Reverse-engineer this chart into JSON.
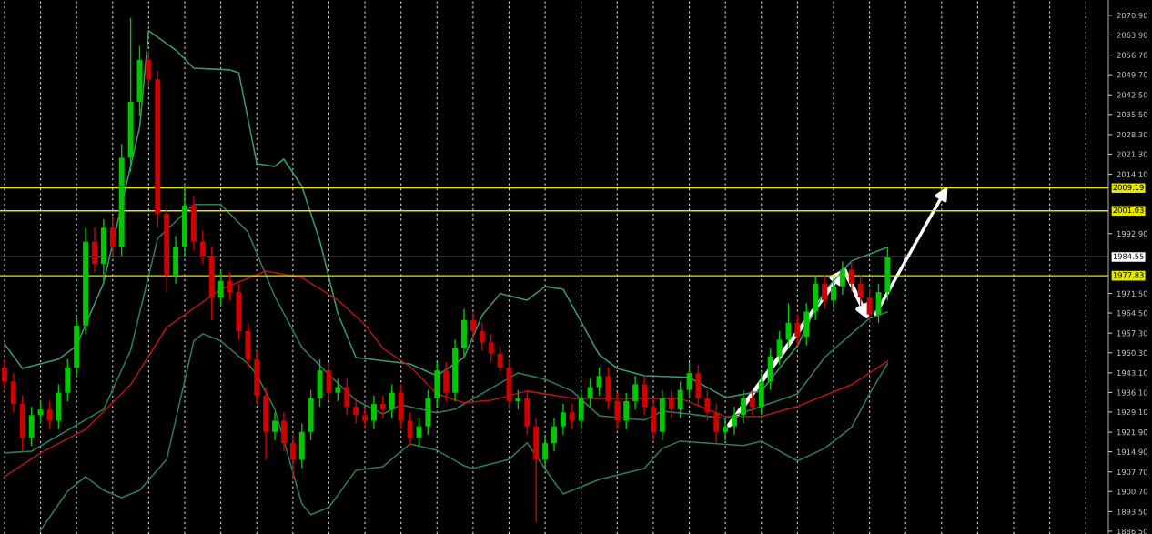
{
  "chart_data": {
    "type": "candlestick",
    "categories": [
      null,
      null,
      null,
      null,
      null,
      null,
      null,
      null,
      null,
      null,
      null,
      null,
      null,
      null,
      null,
      null,
      null,
      null,
      null,
      null,
      null,
      null,
      null,
      null,
      null,
      null,
      null,
      null,
      null,
      null,
      null,
      null,
      null,
      null,
      null,
      null,
      null,
      null,
      null,
      null,
      null,
      null,
      null,
      null,
      null,
      null,
      null,
      null,
      null,
      null,
      null,
      null,
      null,
      null,
      null,
      null,
      null,
      null,
      null,
      null,
      null,
      null,
      null,
      null,
      null,
      null,
      null,
      null,
      null,
      null,
      null,
      null,
      null,
      null,
      null,
      null,
      null,
      null,
      null,
      null,
      null,
      null,
      null,
      null,
      null,
      null,
      null,
      null,
      null,
      null,
      null,
      null,
      null,
      null,
      null,
      null,
      null,
      null,
      null,
      null,
      null,
      null,
      null,
      null,
      null,
      null,
      null,
      null,
      null,
      null,
      null,
      null,
      null,
      null,
      null,
      null,
      null,
      null,
      null,
      null,
      null,
      null,
      null
    ],
    "ohlc": [
      [
        1945,
        1948,
        1937,
        1940
      ],
      [
        1940,
        1943,
        1929,
        1932
      ],
      [
        1932,
        1935,
        1915,
        1920
      ],
      [
        1920,
        1931,
        1917,
        1928
      ],
      [
        1928,
        1933,
        1925,
        1930
      ],
      [
        1930,
        1933,
        1923,
        1926
      ],
      [
        1926,
        1939,
        1923,
        1936
      ],
      [
        1936,
        1948,
        1933,
        1945
      ],
      [
        1945,
        1963,
        1942,
        1960
      ],
      [
        1960,
        1995,
        1957,
        1990
      ],
      [
        1990,
        1995,
        1979,
        1982
      ],
      [
        1982,
        1998,
        1976,
        1995
      ],
      [
        1995,
        1999,
        1985,
        1988
      ],
      [
        1988,
        2025,
        1985,
        2020
      ],
      [
        2020,
        2070,
        2015,
        2040
      ],
      [
        2040,
        2060,
        2035,
        2055
      ],
      [
        2055,
        2058,
        2045,
        2048
      ],
      [
        2048,
        2051,
        1995,
        2000
      ],
      [
        2000,
        2003,
        1972,
        1978
      ],
      [
        1978,
        1992,
        1975,
        1988
      ],
      [
        1988,
        2010,
        1985,
        2003
      ],
      [
        2003,
        2006,
        1987,
        1990
      ],
      [
        1990,
        1994,
        1982,
        1985
      ],
      [
        1985,
        1988,
        1962,
        1970
      ],
      [
        1970,
        1980,
        1967,
        1976
      ],
      [
        1976,
        1979,
        1969,
        1972
      ],
      [
        1972,
        1975,
        1955,
        1958
      ],
      [
        1958,
        1961,
        1945,
        1948
      ],
      [
        1948,
        1951,
        1932,
        1935
      ],
      [
        1935,
        1938,
        1912,
        1922
      ],
      [
        1922,
        1929,
        1919,
        1926
      ],
      [
        1926,
        1929,
        1915,
        1918
      ],
      [
        1918,
        1921,
        1905,
        1912
      ],
      [
        1912,
        1925,
        1909,
        1922
      ],
      [
        1922,
        1937,
        1919,
        1934
      ],
      [
        1934,
        1948,
        1931,
        1944
      ],
      [
        1944,
        1947,
        1933,
        1936
      ],
      [
        1936,
        1941,
        1933,
        1938
      ],
      [
        1938,
        1941,
        1928,
        1931
      ],
      [
        1931,
        1934,
        1925,
        1928
      ],
      [
        1928,
        1931,
        1923,
        1926
      ],
      [
        1926,
        1935,
        1923,
        1932
      ],
      [
        1932,
        1935,
        1927,
        1930
      ],
      [
        1930,
        1939,
        1927,
        1936
      ],
      [
        1936,
        1939,
        1923,
        1926
      ],
      [
        1926,
        1929,
        1917,
        1920
      ],
      [
        1920,
        1927,
        1917,
        1924
      ],
      [
        1924,
        1937,
        1921,
        1934
      ],
      [
        1934,
        1947,
        1931,
        1944
      ],
      [
        1944,
        1947,
        1933,
        1936
      ],
      [
        1936,
        1955,
        1933,
        1952
      ],
      [
        1952,
        1966,
        1949,
        1962
      ],
      [
        1962,
        1965,
        1955,
        1958
      ],
      [
        1958,
        1961,
        1951,
        1954
      ],
      [
        1954,
        1957,
        1947,
        1950
      ],
      [
        1950,
        1953,
        1942,
        1945
      ],
      [
        1945,
        1948,
        1930,
        1933
      ],
      [
        1933,
        1937,
        1930,
        1934
      ],
      [
        1934,
        1937,
        1921,
        1924
      ],
      [
        1924,
        1927,
        1890,
        1912
      ],
      [
        1912,
        1921,
        1909,
        1918
      ],
      [
        1918,
        1927,
        1915,
        1924
      ],
      [
        1924,
        1932,
        1921,
        1929
      ],
      [
        1929,
        1932,
        1923,
        1926
      ],
      [
        1926,
        1937,
        1923,
        1934
      ],
      [
        1934,
        1941,
        1931,
        1938
      ],
      [
        1938,
        1945,
        1935,
        1942
      ],
      [
        1942,
        1945,
        1930,
        1933
      ],
      [
        1933,
        1936,
        1923,
        1926
      ],
      [
        1926,
        1936,
        1923,
        1933
      ],
      [
        1933,
        1942,
        1930,
        1939
      ],
      [
        1939,
        1942,
        1928,
        1931
      ],
      [
        1931,
        1934,
        1919,
        1922
      ],
      [
        1922,
        1937,
        1919,
        1934
      ],
      [
        1934,
        1937,
        1927,
        1930
      ],
      [
        1930,
        1940,
        1927,
        1937
      ],
      [
        1937,
        1947,
        1934,
        1943
      ],
      [
        1943,
        1946,
        1931,
        1934
      ],
      [
        1934,
        1937,
        1926,
        1929
      ],
      [
        1929,
        1932,
        1918,
        1922
      ],
      [
        1922,
        1927,
        1919,
        1924
      ],
      [
        1924,
        1931,
        1921,
        1928
      ],
      [
        1928,
        1937,
        1925,
        1934
      ],
      [
        1934,
        1937,
        1928,
        1931
      ],
      [
        1931,
        1943,
        1928,
        1940
      ],
      [
        1940,
        1952,
        1937,
        1949
      ],
      [
        1949,
        1958,
        1946,
        1955
      ],
      [
        1955,
        1968,
        1952,
        1961
      ],
      [
        1961,
        1964,
        1953,
        1956
      ],
      [
        1956,
        1968,
        1953,
        1965
      ],
      [
        1965,
        1978,
        1962,
        1975
      ],
      [
        1975,
        1978,
        1966,
        1969
      ],
      [
        1969,
        1977,
        1966,
        1974
      ],
      [
        1974,
        1983,
        1971,
        1980
      ],
      [
        1980,
        1983,
        1972,
        1975
      ],
      [
        1975,
        1978,
        1967,
        1970
      ],
      [
        1970,
        1973,
        1961,
        1964
      ],
      [
        1964,
        1975,
        1961,
        1972
      ],
      [
        1972,
        1988,
        1969,
        1984.5
      ],
      null,
      null,
      null,
      null,
      null,
      null,
      null,
      null,
      null,
      null,
      null,
      null,
      null,
      null,
      null,
      null,
      null,
      null,
      null,
      null,
      null,
      null,
      null,
      null
    ],
    "colors": [
      "#d00000",
      "#d00000",
      "#d00000",
      "#00c800",
      "#00c800",
      "#d00000",
      "#00c800",
      "#00c800",
      "#00c800",
      "#00c800",
      "#d00000",
      "#00c800",
      "#d00000",
      "#00c800",
      "#00c800",
      "#00c800",
      "#d00000",
      "#d00000",
      "#d00000",
      "#00c800",
      "#00c800",
      "#d00000",
      "#d00000",
      "#d00000",
      "#00c800",
      "#d00000",
      "#d00000",
      "#d00000",
      "#d00000",
      "#d00000",
      "#00c800",
      "#d00000",
      "#d00000",
      "#00c800",
      "#00c800",
      "#00c800",
      "#d00000",
      "#00c800",
      "#d00000",
      "#d00000",
      "#d00000",
      "#00c800",
      "#d00000",
      "#00c800",
      "#d00000",
      "#d00000",
      "#00c800",
      "#00c800",
      "#00c800",
      "#d00000",
      "#00c800",
      "#00c800",
      "#d00000",
      "#d00000",
      "#d00000",
      "#d00000",
      "#d00000",
      "#00c800",
      "#d00000",
      "#d00000",
      "#00c800",
      "#00c800",
      "#00c800",
      "#d00000",
      "#00c800",
      "#00c800",
      "#00c800",
      "#d00000",
      "#d00000",
      "#00c800",
      "#00c800",
      "#d00000",
      "#d00000",
      "#00c800",
      "#d00000",
      "#00c800",
      "#00c800",
      "#d00000",
      "#d00000",
      "#d00000",
      "#00c800",
      "#00c800",
      "#00c800",
      "#d00000",
      "#00c800",
      "#00c800",
      "#00c800",
      "#00c800",
      "#d00000",
      "#00c800",
      "#00c800",
      "#d00000",
      "#00c800",
      "#00c800",
      "#d00000",
      "#d00000",
      "#d00000",
      "#00c800",
      "#00c800",
      null,
      null,
      null,
      null,
      null,
      null,
      null,
      null,
      null,
      null,
      null,
      null,
      null,
      null,
      null,
      null,
      null,
      null,
      null,
      null,
      null,
      null,
      null,
      null
    ],
    "series": [
      {
        "type": "line",
        "color": "#3a9a6a",
        "values": [
          1953.5,
          null,
          1944.7,
          null,
          null,
          null,
          1948.0,
          null,
          1952.8,
          null,
          null,
          1975.3,
          null,
          null,
          null,
          2030.9,
          2065.4,
          null,
          null,
          2058.5,
          null,
          2052.0,
          null,
          null,
          null,
          2051.4,
          2050.4,
          null,
          2017.9,
          null,
          2016.9,
          2019.5,
          null,
          2009.8,
          null,
          1990.2,
          null,
          1964.2,
          null,
          1948.6,
          null,
          null,
          null,
          null,
          null,
          1946.3,
          null,
          null,
          1942.1,
          null,
          null,
          1948.6,
          null,
          1963.6,
          null,
          1971.4,
          null,
          null,
          1969.1,
          null,
          1974.0,
          null,
          1973.0,
          null,
          null,
          null,
          1949.6,
          null,
          1944.7,
          null,
          null,
          1942.1,
          null,
          null,
          null,
          null,
          1941.5,
          null,
          null,
          null,
          1934.3,
          null,
          null,
          null,
          1936.6,
          null,
          null,
          null,
          1952.8,
          null,
          null,
          1972.4,
          null,
          null,
          1983.1,
          null,
          null,
          null,
          1988.0,
          null,
          null,
          null,
          null,
          null,
          null,
          null,
          null,
          null,
          null,
          null,
          null,
          null,
          null,
          null,
          null,
          null,
          null,
          null,
          null,
          null,
          null,
          null,
          null
        ]
      },
      {
        "type": "line",
        "color": "#2f7d55",
        "values": [
          1914.5,
          null,
          null,
          1915.1,
          null,
          null,
          null,
          null,
          null,
          null,
          null,
          1930.1,
          null,
          null,
          1951.2,
          null,
          null,
          1991.2,
          null,
          null,
          null,
          2003.3,
          null,
          null,
          2003.3,
          null,
          null,
          1993.5,
          null,
          null,
          1970.4,
          null,
          null,
          1952.2,
          null,
          null,
          1942.4,
          null,
          null,
          1933.3,
          null,
          null,
          1928.4,
          null,
          1931.7,
          null,
          null,
          null,
          1928.8,
          null,
          1930.1,
          null,
          null,
          null,
          1937.6,
          null,
          null,
          1943.1,
          null,
          null,
          1940.8,
          null,
          null,
          1936.6,
          null,
          null,
          1927.8,
          null,
          null,
          null,
          null,
          1926.2,
          null,
          1929.4,
          null,
          null,
          1928.4,
          null,
          null,
          null,
          1926.8,
          null,
          null,
          null,
          1931.1,
          null,
          null,
          null,
          1935.6,
          null,
          null,
          1948.6,
          null,
          null,
          1957.1,
          null,
          1962.6,
          null,
          1964.9,
          null,
          null,
          null,
          null,
          null,
          null,
          null,
          null,
          null,
          null,
          null,
          null,
          null,
          null,
          null,
          null,
          null,
          null,
          null,
          null,
          null,
          null,
          null,
          null
        ]
      },
      {
        "type": "line",
        "color": "#2f7d55",
        "values": [
          null,
          null,
          null,
          null,
          1886.8,
          null,
          null,
          1900.8,
          null,
          1906.0,
          null,
          1901.1,
          null,
          1898.5,
          1899.8,
          1901.1,
          null,
          null,
          1912.2,
          null,
          null,
          1954.5,
          1957.1,
          null,
          1954.5,
          null,
          null,
          1946.4,
          1942.4,
          null,
          1930.1,
          null,
          null,
          1896.3,
          1892.4,
          null,
          1895.0,
          null,
          null,
          1908.3,
          null,
          null,
          1909.6,
          null,
          null,
          1917.7,
          null,
          null,
          1915.4,
          null,
          null,
          1909.9,
          1908.9,
          null,
          null,
          null,
          1912.2,
          null,
          1918.1,
          null,
          null,
          1904.1,
          1899.8,
          null,
          null,
          null,
          1905.0,
          null,
          null,
          null,
          null,
          1908.9,
          null,
          1916.1,
          null,
          1918.7,
          null,
          null,
          null,
          null,
          null,
          null,
          1917.1,
          null,
          1918.7,
          null,
          null,
          null,
          1911.6,
          null,
          null,
          1916.1,
          null,
          null,
          1923.6,
          null,
          1935.6,
          null,
          1946.4,
          null,
          null,
          null,
          null,
          null,
          null,
          null,
          null,
          null,
          null,
          null,
          null,
          null,
          null,
          null,
          null,
          null,
          null,
          null,
          null,
          null,
          null,
          null,
          null
        ]
      },
      {
        "type": "line",
        "color": "#b01414",
        "values": [
          1906.0,
          null,
          null,
          null,
          1914.5,
          null,
          null,
          null,
          null,
          1922.9,
          null,
          null,
          null,
          null,
          1938.9,
          null,
          null,
          null,
          1959.4,
          null,
          null,
          null,
          null,
          null,
          1973.0,
          null,
          null,
          null,
          null,
          1979.5,
          null,
          null,
          null,
          1977.2,
          null,
          null,
          null,
          1969.1,
          null,
          null,
          1960.3,
          null,
          1951.9,
          null,
          null,
          1945.4,
          null,
          null,
          1935.6,
          null,
          null,
          1932.4,
          null,
          null,
          1933.3,
          null,
          null,
          null,
          1936.6,
          null,
          null,
          null,
          null,
          1934.0,
          null,
          null,
          null,
          null,
          null,
          null,
          1934.0,
          null,
          null,
          null,
          null,
          1934.0,
          null,
          null,
          null,
          null,
          1927.5,
          null,
          null,
          null,
          1927.5,
          null,
          null,
          null,
          1931.1,
          null,
          null,
          null,
          null,
          null,
          1938.9,
          null,
          null,
          null,
          1947.3,
          null,
          null,
          null,
          null,
          null,
          null,
          null,
          null,
          null,
          null,
          null,
          null,
          null,
          null,
          null,
          null,
          null,
          null,
          null,
          null,
          null,
          null,
          null,
          null
        ]
      }
    ],
    "ylim": [
      1885.5,
      2076.4
    ],
    "yticks": [
      {
        "value": 2070.9,
        "label": "2070.90"
      },
      {
        "value": 2063.9,
        "label": "2063.90"
      },
      {
        "value": 2056.7,
        "label": "2056.70"
      },
      {
        "value": 2049.7,
        "label": "2049.70"
      },
      {
        "value": 2042.5,
        "label": "2042.50"
      },
      {
        "value": 2035.5,
        "label": "2035.50"
      },
      {
        "value": 2028.3,
        "label": "2028.30"
      },
      {
        "value": 2021.3,
        "label": "2021.30"
      },
      {
        "value": 2014.1,
        "label": "2014.10"
      },
      {
        "value": 1992.9,
        "label": "1992.90"
      },
      {
        "value": 1971.5,
        "label": "1971.50"
      },
      {
        "value": 1964.5,
        "label": "1964.50"
      },
      {
        "value": 1957.3,
        "label": "1957.30"
      },
      {
        "value": 1950.3,
        "label": "1950.30"
      },
      {
        "value": 1943.1,
        "label": "1943.10"
      },
      {
        "value": 1936.1,
        "label": "1936.10"
      },
      {
        "value": 1929.1,
        "label": "1929.10"
      },
      {
        "value": 1921.9,
        "label": "1921.90"
      },
      {
        "value": 1914.9,
        "label": "1914.90"
      },
      {
        "value": 1907.7,
        "label": "1907.70"
      },
      {
        "value": 1900.7,
        "label": "1900.70"
      },
      {
        "value": 1893.5,
        "label": "1893.50"
      },
      {
        "value": 1886.5,
        "label": "1886.50"
      }
    ],
    "ref_lines": [
      {
        "axis": "y",
        "value": 2009.19,
        "label": "2009.19",
        "color": "#e6e600"
      },
      {
        "axis": "y",
        "value": 2001.03,
        "label": "2001.03",
        "color": "#e6e600"
      },
      {
        "axis": "y",
        "value": 1984.55,
        "label": "1984.55",
        "color": "#a0a4a8"
      },
      {
        "axis": "y",
        "value": 1977.83,
        "label": "1977.83",
        "color": "#e6e600"
      }
    ],
    "grid": "x",
    "tick_labels": "y"
  }
}
